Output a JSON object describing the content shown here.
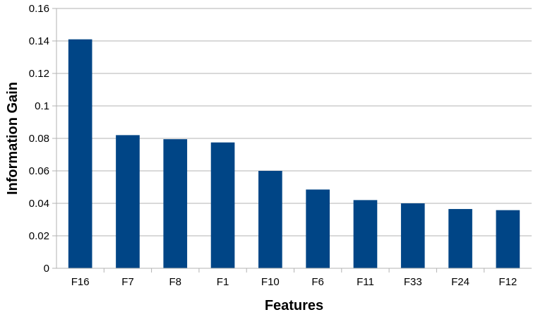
{
  "chart_data": {
    "type": "bar",
    "title": "",
    "xlabel": "Features",
    "ylabel": "Information Gain",
    "categories": [
      "F16",
      "F7",
      "F8",
      "F1",
      "F10",
      "F6",
      "F11",
      "F33",
      "F24",
      "F12"
    ],
    "values": [
      0.141,
      0.082,
      0.0795,
      0.0775,
      0.06,
      0.0485,
      0.042,
      0.04,
      0.0365,
      0.0358
    ],
    "ylim": [
      0,
      0.16
    ],
    "yticks": [
      "0",
      "0.02",
      "0.04",
      "0.06",
      "0.08",
      "0.1",
      "0.12",
      "0.14",
      "0.16"
    ],
    "grid": true,
    "legend": "none",
    "colors": {
      "bar": "#004586",
      "grid": "#b3b3b3",
      "axis": "#b3b3b3"
    }
  }
}
